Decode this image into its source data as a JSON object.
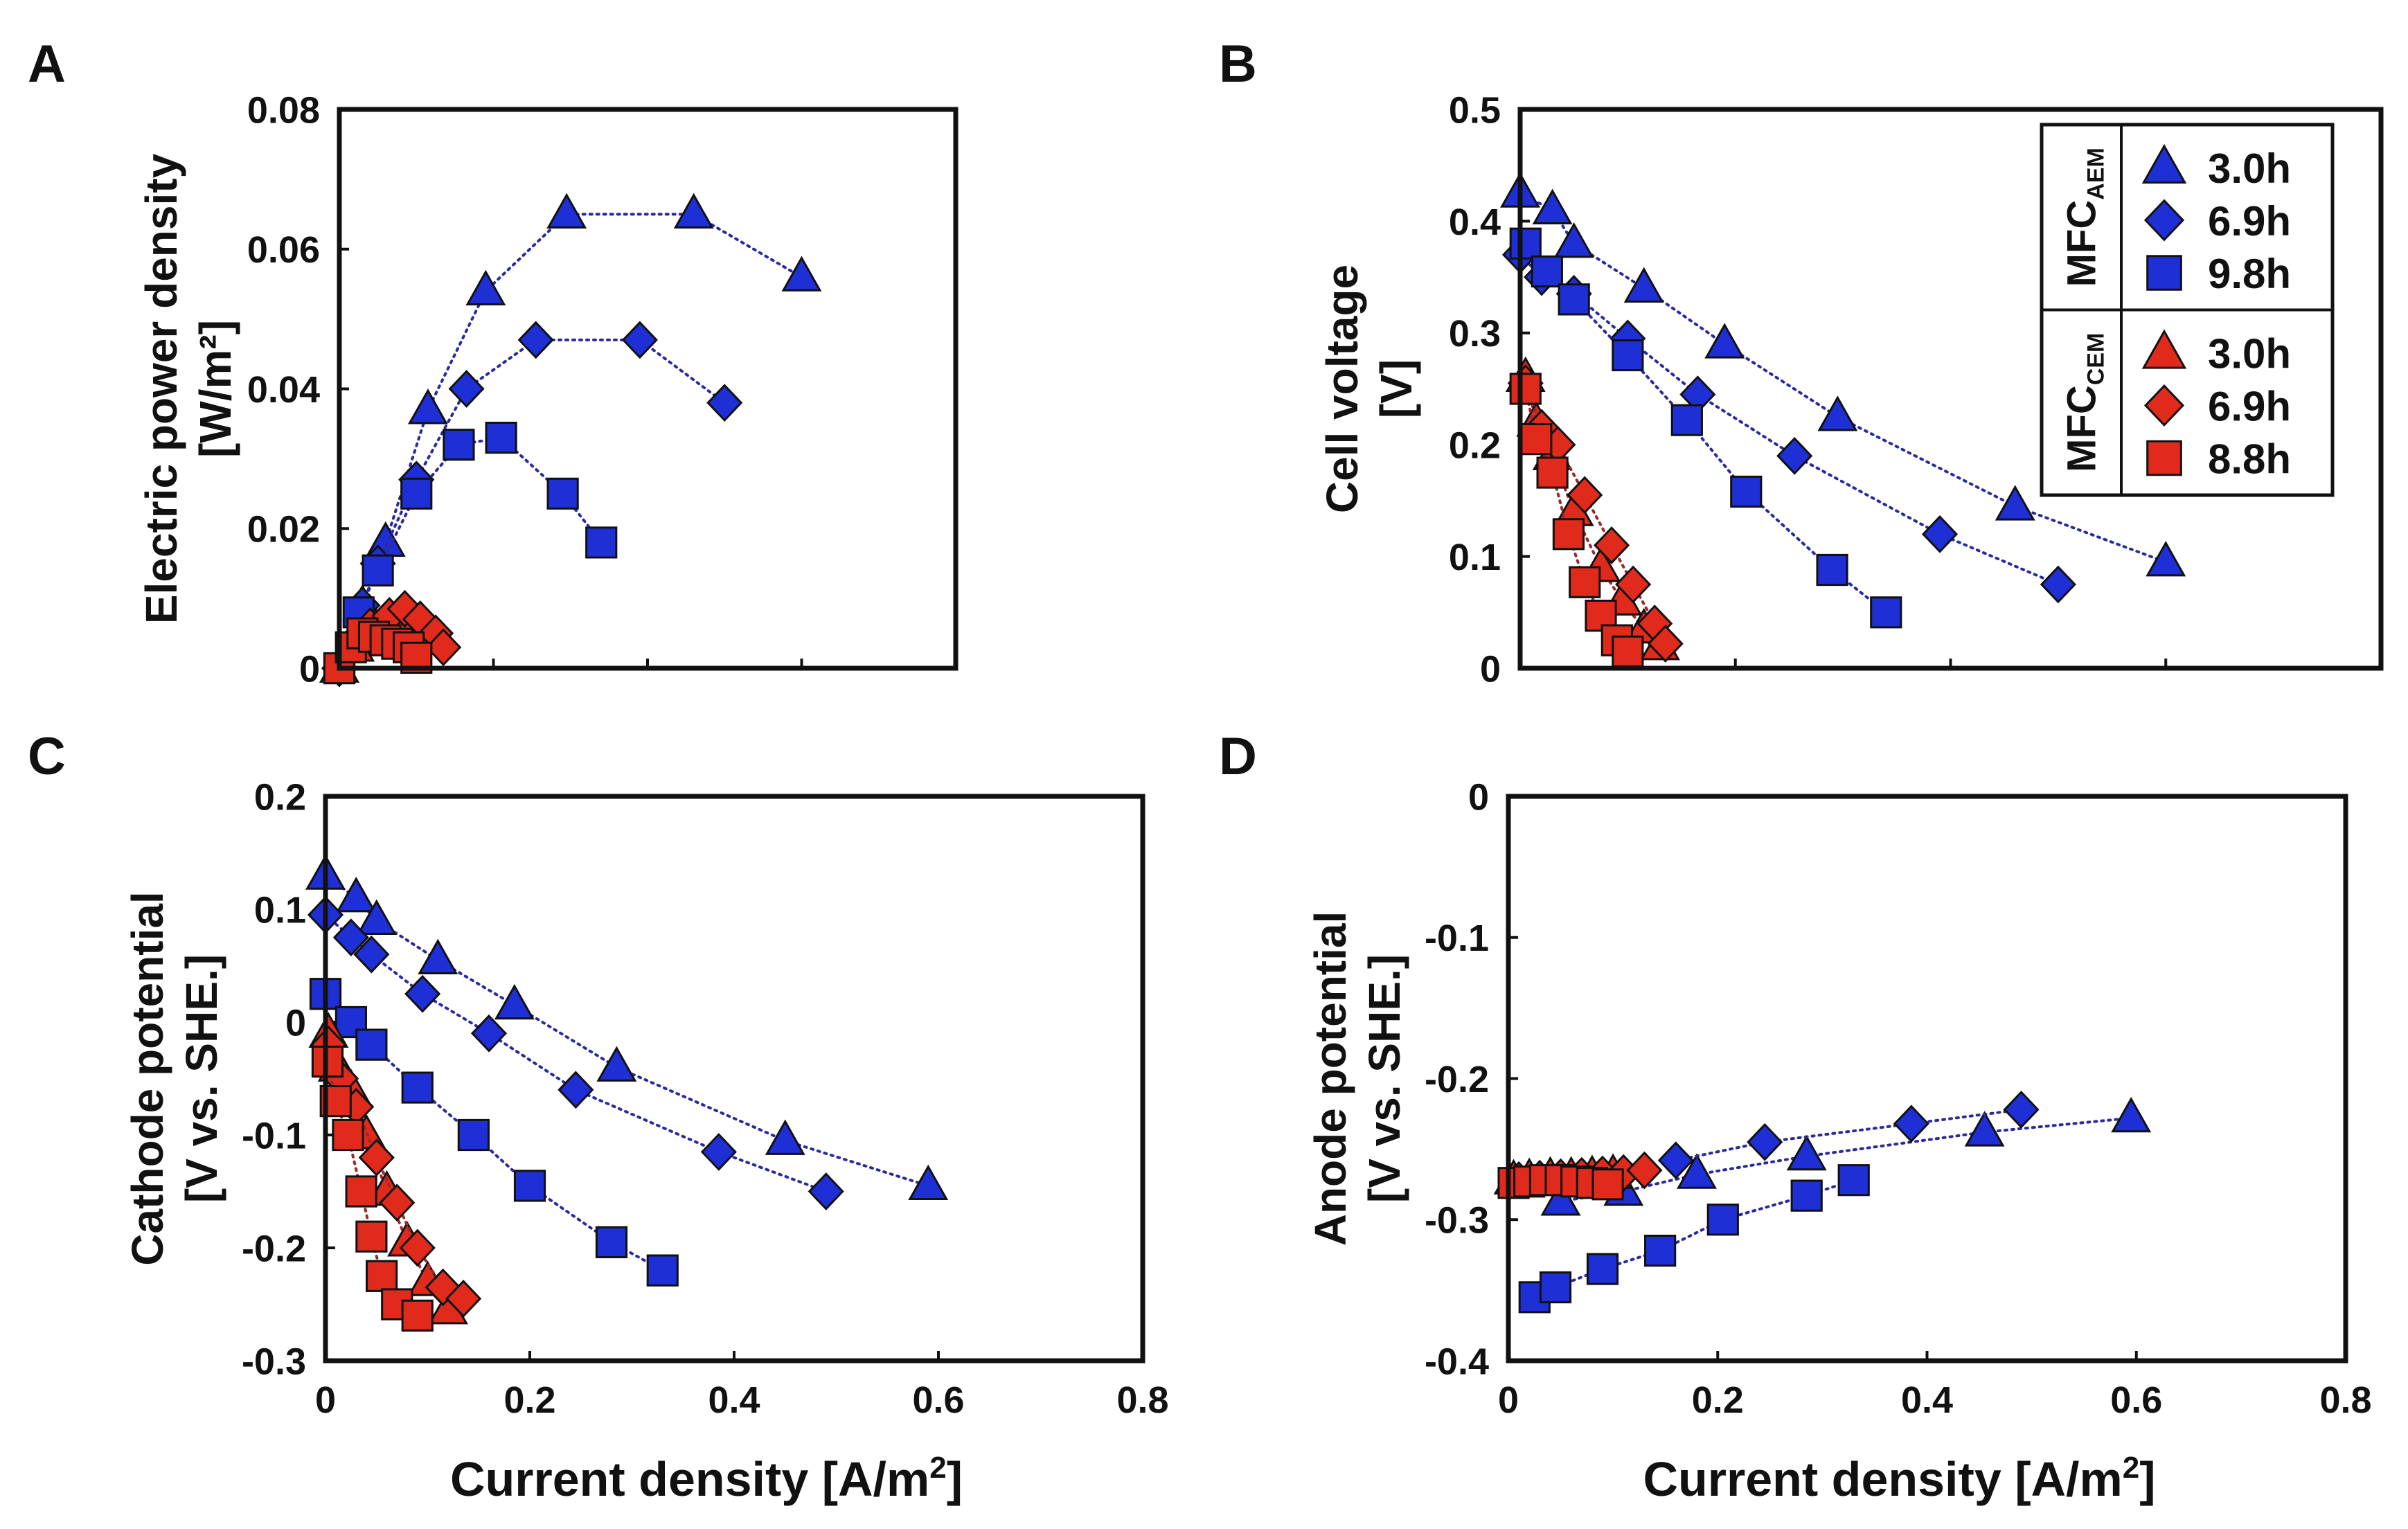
{
  "colors": {
    "aem": "#1f2fd6",
    "cem": "#e02a1c",
    "outline": "#111111",
    "connector_aem": "#2a2a9e",
    "connector_cem": "#9a2a2a"
  },
  "marker_shapes": {
    "3.0h": "triangle",
    "6.9h": "diamond",
    "9.8h": "square",
    "8.8h": "square"
  },
  "legend": {
    "panel": "B",
    "groups": [
      {
        "label_main": "MFC",
        "label_sub": "AEM",
        "color": "aem",
        "entries": [
          {
            "label": "3.0h",
            "marker": "triangle"
          },
          {
            "label": "6.9h",
            "marker": "diamond"
          },
          {
            "label": "9.8h",
            "marker": "square"
          }
        ]
      },
      {
        "label_main": "MFC",
        "label_sub": "CEM",
        "color": "cem",
        "entries": [
          {
            "label": "3.0h",
            "marker": "triangle"
          },
          {
            "label": "6.9h",
            "marker": "diamond"
          },
          {
            "label": "8.8h",
            "marker": "square"
          }
        ]
      }
    ]
  },
  "chart_data": [
    {
      "panel_label": "A",
      "type": "scatter",
      "title": "",
      "xlabel": "",
      "ylabel_lines": [
        "Electric power density",
        "[W/m²]"
      ],
      "xlim": [
        0,
        0.8
      ],
      "ylim": [
        0,
        0.08
      ],
      "xticks": [],
      "yticks": [
        "0",
        "0.02",
        "0.04",
        "0.06",
        "0.08"
      ],
      "ytick_values": [
        0,
        0.02,
        0.04,
        0.06,
        0.08
      ],
      "series": [
        {
          "name": "MFC AEM 3.0h",
          "color": "aem",
          "marker": "triangle",
          "x": [
            0,
            0.03,
            0.06,
            0.115,
            0.19,
            0.295,
            0.46,
            0.6
          ],
          "y": [
            0,
            0.009,
            0.018,
            0.037,
            0.054,
            0.065,
            0.065,
            0.056
          ]
        },
        {
          "name": "MFC AEM 6.9h",
          "color": "aem",
          "marker": "diamond",
          "x": [
            0,
            0.03,
            0.05,
            0.1,
            0.165,
            0.255,
            0.39,
            0.5
          ],
          "y": [
            0,
            0.009,
            0.015,
            0.027,
            0.04,
            0.047,
            0.047,
            0.038
          ]
        },
        {
          "name": "MFC AEM 9.8h",
          "color": "aem",
          "marker": "square",
          "x": [
            0,
            0.025,
            0.05,
            0.1,
            0.155,
            0.21,
            0.29,
            0.34
          ],
          "y": [
            0,
            0.008,
            0.014,
            0.025,
            0.032,
            0.033,
            0.025,
            0.018
          ]
        },
        {
          "name": "MFC CEM 3.0h",
          "color": "cem",
          "marker": "triangle",
          "x": [
            0,
            0.02,
            0.04,
            0.06,
            0.085,
            0.105,
            0.12
          ],
          "y": [
            0,
            0.003,
            0.005,
            0.0065,
            0.006,
            0.005,
            0.004
          ]
        },
        {
          "name": "MFC CEM 6.9h",
          "color": "cem",
          "marker": "diamond",
          "x": [
            0,
            0.02,
            0.04,
            0.065,
            0.085,
            0.105,
            0.125,
            0.135
          ],
          "y": [
            0,
            0.004,
            0.006,
            0.0075,
            0.0085,
            0.007,
            0.005,
            0.003
          ]
        },
        {
          "name": "MFC CEM 8.8h",
          "color": "cem",
          "marker": "square",
          "x": [
            0,
            0.015,
            0.03,
            0.045,
            0.06,
            0.075,
            0.09,
            0.1
          ],
          "y": [
            0,
            0.003,
            0.005,
            0.0045,
            0.004,
            0.0035,
            0.003,
            0.0015
          ]
        }
      ]
    },
    {
      "panel_label": "B",
      "type": "scatter",
      "title": "",
      "xlabel": "",
      "ylabel_lines": [
        "Cell voltage",
        "[V]"
      ],
      "xlim": [
        0,
        0.8
      ],
      "ylim": [
        0,
        0.5
      ],
      "xticks": [],
      "yticks": [
        "0",
        "0.1",
        "0.2",
        "0.3",
        "0.4",
        "0.5"
      ],
      "ytick_values": [
        0,
        0.1,
        0.2,
        0.3,
        0.4,
        0.5
      ],
      "series": [
        {
          "name": "MFC AEM 3.0h",
          "color": "aem",
          "marker": "triangle",
          "x": [
            0,
            0.03,
            0.05,
            0.115,
            0.19,
            0.295,
            0.46,
            0.6
          ],
          "y": [
            0.425,
            0.41,
            0.38,
            0.34,
            0.29,
            0.225,
            0.145,
            0.095
          ]
        },
        {
          "name": "MFC AEM 6.9h",
          "color": "aem",
          "marker": "diamond",
          "x": [
            0,
            0.02,
            0.05,
            0.1,
            0.165,
            0.255,
            0.39,
            0.5
          ],
          "y": [
            0.37,
            0.35,
            0.335,
            0.295,
            0.245,
            0.19,
            0.12,
            0.075
          ]
        },
        {
          "name": "MFC AEM 9.8h",
          "color": "aem",
          "marker": "square",
          "x": [
            0.005,
            0.025,
            0.05,
            0.1,
            0.155,
            0.21,
            0.29,
            0.34
          ],
          "y": [
            0.38,
            0.355,
            0.33,
            0.28,
            0.222,
            0.158,
            0.088,
            0.05
          ]
        },
        {
          "name": "MFC CEM 3.0h",
          "color": "cem",
          "marker": "triangle",
          "x": [
            0.005,
            0.015,
            0.03,
            0.05,
            0.075,
            0.095,
            0.115,
            0.13
          ],
          "y": [
            0.26,
            0.22,
            0.19,
            0.14,
            0.09,
            0.06,
            0.035,
            0.02
          ]
        },
        {
          "name": "MFC CEM 6.9h",
          "color": "cem",
          "marker": "diamond",
          "x": [
            0.005,
            0.02,
            0.035,
            0.06,
            0.085,
            0.105,
            0.125,
            0.135
          ],
          "y": [
            0.255,
            0.215,
            0.2,
            0.155,
            0.11,
            0.075,
            0.04,
            0.022
          ]
        },
        {
          "name": "MFC CEM 8.8h",
          "color": "cem",
          "marker": "square",
          "x": [
            0.005,
            0.015,
            0.03,
            0.045,
            0.06,
            0.075,
            0.09,
            0.1
          ],
          "y": [
            0.25,
            0.205,
            0.175,
            0.12,
            0.077,
            0.047,
            0.025,
            0.015
          ]
        }
      ]
    },
    {
      "panel_label": "C",
      "type": "scatter",
      "title": "",
      "xlabel_main": "Current density [A/m",
      "xlabel_sup": "2",
      "xlabel_end": "]",
      "ylabel_lines": [
        "Cathode potential",
        "[V vs. SHE.]"
      ],
      "xlim": [
        0,
        0.8
      ],
      "ylim": [
        -0.3,
        0.2
      ],
      "xticks": [
        "0",
        "0.2",
        "0.4",
        "0.6",
        "0.8"
      ],
      "xtick_values": [
        0,
        0.2,
        0.4,
        0.6,
        0.8
      ],
      "yticks": [
        "-0.3",
        "-0.2",
        "-0.1",
        "0",
        "0.1",
        "0.2"
      ],
      "ytick_values": [
        -0.3,
        -0.2,
        -0.1,
        0,
        0.1,
        0.2
      ],
      "series": [
        {
          "name": "MFC AEM 3.0h",
          "color": "aem",
          "marker": "triangle",
          "x": [
            0,
            0.03,
            0.05,
            0.11,
            0.185,
            0.285,
            0.45,
            0.59
          ],
          "y": [
            0.13,
            0.11,
            0.09,
            0.055,
            0.015,
            -0.04,
            -0.105,
            -0.145
          ]
        },
        {
          "name": "MFC AEM 6.9h",
          "color": "aem",
          "marker": "diamond",
          "x": [
            0,
            0.025,
            0.045,
            0.095,
            0.16,
            0.245,
            0.385,
            0.49
          ],
          "y": [
            0.095,
            0.075,
            0.06,
            0.025,
            -0.01,
            -0.06,
            -0.115,
            -0.15
          ]
        },
        {
          "name": "MFC AEM 9.8h",
          "color": "aem",
          "marker": "square",
          "x": [
            0,
            0.025,
            0.045,
            0.09,
            0.145,
            0.2,
            0.28,
            0.33
          ],
          "y": [
            0.025,
            0.0,
            -0.02,
            -0.058,
            -0.1,
            -0.145,
            -0.195,
            -0.22
          ]
        },
        {
          "name": "MFC CEM 3.0h",
          "color": "cem",
          "marker": "triangle",
          "x": [
            0.003,
            0.012,
            0.025,
            0.04,
            0.06,
            0.08,
            0.1,
            0.12
          ],
          "y": [
            -0.01,
            -0.04,
            -0.06,
            -0.1,
            -0.15,
            -0.195,
            -0.23,
            -0.255
          ]
        },
        {
          "name": "MFC CEM 6.9h",
          "color": "cem",
          "marker": "diamond",
          "x": [
            0.003,
            0.015,
            0.03,
            0.05,
            0.07,
            0.09,
            0.115,
            0.135
          ],
          "y": [
            -0.02,
            -0.05,
            -0.075,
            -0.12,
            -0.16,
            -0.2,
            -0.235,
            -0.245
          ]
        },
        {
          "name": "MFC CEM 8.8h",
          "color": "cem",
          "marker": "square",
          "x": [
            0.002,
            0.01,
            0.022,
            0.035,
            0.045,
            0.055,
            0.07,
            0.09
          ],
          "y": [
            -0.035,
            -0.07,
            -0.1,
            -0.15,
            -0.19,
            -0.225,
            -0.25,
            -0.26
          ]
        }
      ]
    },
    {
      "panel_label": "D",
      "type": "scatter",
      "title": "",
      "xlabel_main": "Current density [A/m",
      "xlabel_sup": "2",
      "xlabel_end": "]",
      "ylabel_lines": [
        "Anode potential",
        "[V vs. SHE.]"
      ],
      "xlim": [
        0,
        0.8
      ],
      "ylim": [
        -0.4,
        0
      ],
      "xticks": [
        "0",
        "0.2",
        "0.4",
        "0.6",
        "0.8"
      ],
      "xtick_values": [
        0,
        0.2,
        0.4,
        0.6,
        0.8
      ],
      "yticks": [
        "-0.4",
        "-0.3",
        "-0.2",
        "-0.1",
        "0"
      ],
      "ytick_values": [
        -0.4,
        -0.3,
        -0.2,
        -0.1,
        0
      ],
      "series": [
        {
          "name": "MFC AEM 3.0h",
          "color": "aem",
          "marker": "triangle",
          "x": [
            0.05,
            0.11,
            0.18,
            0.285,
            0.455,
            0.595
          ],
          "y": [
            -0.287,
            -0.28,
            -0.268,
            -0.255,
            -0.238,
            -0.228
          ]
        },
        {
          "name": "MFC AEM 6.9h",
          "color": "aem",
          "marker": "diamond",
          "x": [
            0.16,
            0.245,
            0.385,
            0.49
          ],
          "y": [
            -0.258,
            -0.245,
            -0.232,
            -0.222
          ]
        },
        {
          "name": "MFC AEM 9.8h",
          "color": "aem",
          "marker": "square",
          "x": [
            0.025,
            0.045,
            0.09,
            0.145,
            0.205,
            0.285,
            0.33
          ],
          "y": [
            -0.355,
            -0.348,
            -0.335,
            -0.322,
            -0.3,
            -0.283,
            -0.272
          ]
        },
        {
          "name": "MFC CEM 3.0h",
          "color": "cem",
          "marker": "triangle",
          "x": [
            0.005,
            0.02,
            0.04,
            0.06,
            0.08,
            0.1
          ],
          "y": [
            -0.272,
            -0.271,
            -0.27,
            -0.27,
            -0.269,
            -0.268
          ]
        },
        {
          "name": "MFC CEM 6.9h",
          "color": "cem",
          "marker": "diamond",
          "x": [
            0.01,
            0.03,
            0.05,
            0.07,
            0.09,
            0.11,
            0.13
          ],
          "y": [
            -0.272,
            -0.271,
            -0.27,
            -0.269,
            -0.268,
            -0.267,
            -0.265
          ]
        },
        {
          "name": "MFC CEM 8.8h",
          "color": "cem",
          "marker": "square",
          "x": [
            0.005,
            0.02,
            0.035,
            0.05,
            0.065,
            0.08,
            0.095
          ],
          "y": [
            -0.274,
            -0.273,
            -0.272,
            -0.272,
            -0.273,
            -0.274,
            -0.275
          ]
        }
      ]
    }
  ]
}
